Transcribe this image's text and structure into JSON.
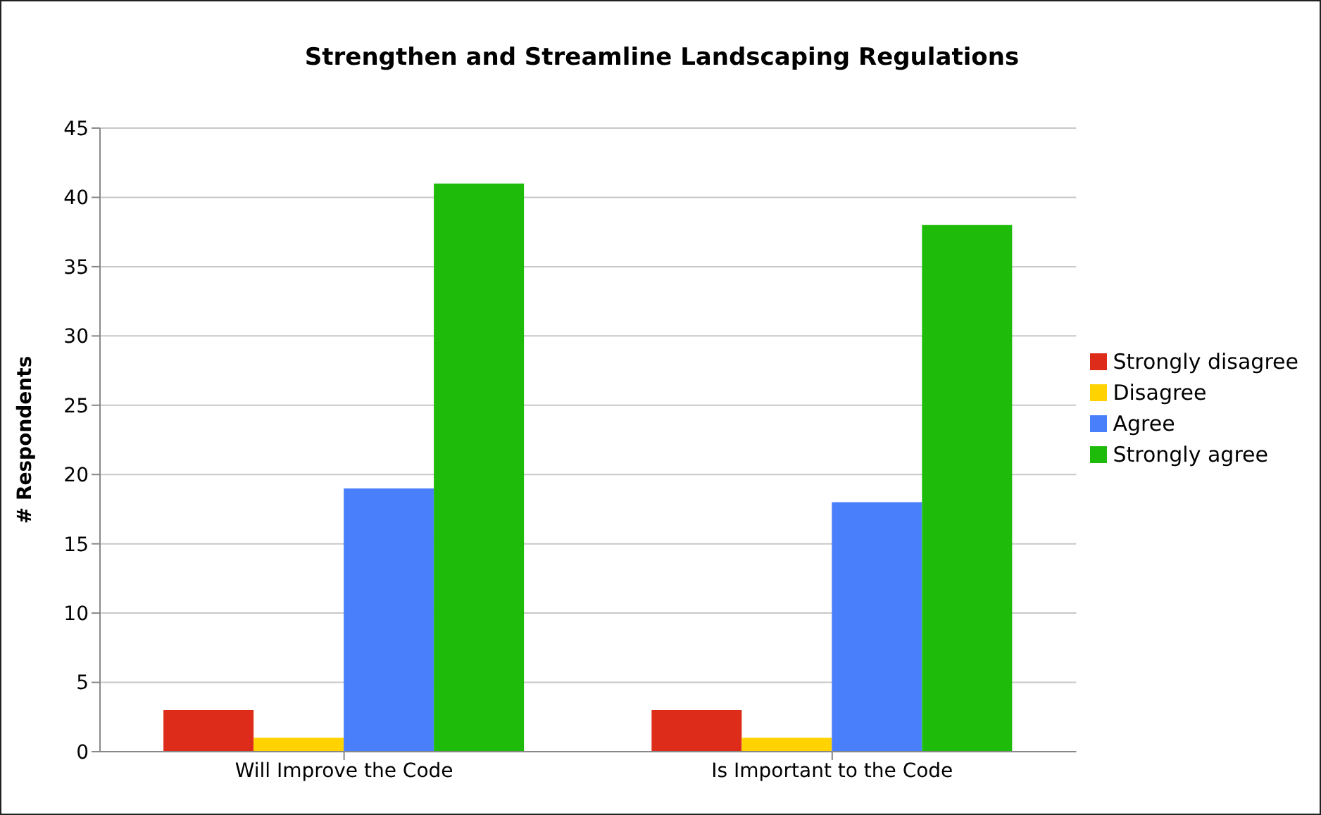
{
  "chart_data": {
    "type": "bar",
    "title": "Strengthen and Streamline Landscaping Regulations",
    "ylabel": "# Respondents",
    "categories": [
      "Will Improve the Code",
      "Is Important to the Code"
    ],
    "series": [
      {
        "name": "Strongly disagree",
        "color": "#dd2c1a",
        "values": [
          3,
          3
        ]
      },
      {
        "name": "Disagree",
        "color": "#ffd200",
        "values": [
          1,
          1
        ]
      },
      {
        "name": "Agree",
        "color": "#4a7ffc",
        "values": [
          19,
          18
        ]
      },
      {
        "name": "Strongly agree",
        "color": "#1fbb0a",
        "values": [
          41,
          38
        ]
      }
    ],
    "ylim": [
      0,
      45
    ],
    "yticks": [
      0,
      5,
      10,
      15,
      20,
      25,
      30,
      35,
      40,
      45
    ],
    "grid": "y",
    "legend": "right"
  }
}
